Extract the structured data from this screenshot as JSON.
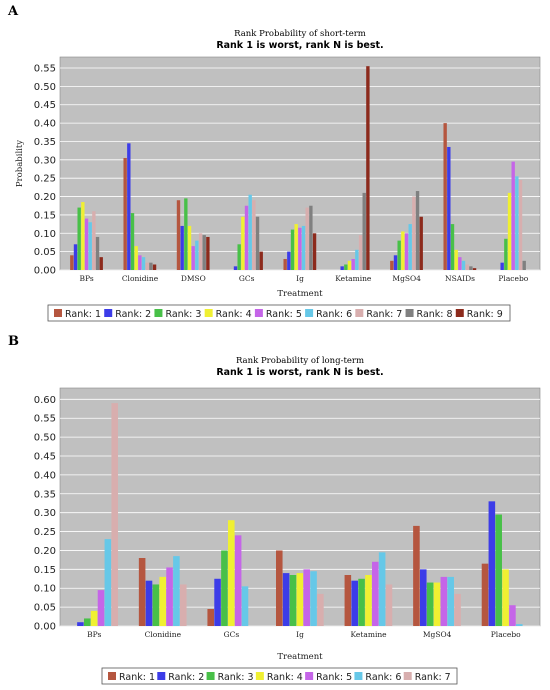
{
  "panels": [
    {
      "letter": "A"
    },
    {
      "letter": "B"
    }
  ],
  "chart_data": [
    {
      "type": "bar",
      "title": "Rank Probability of short-term",
      "subtitle": "Rank 1 is worst, rank N is best.",
      "xlabel": "Treatment",
      "ylabel": "Probability",
      "ylim": [
        0,
        0.58
      ],
      "yticks": [
        "0.00",
        "0.05",
        "0.10",
        "0.15",
        "0.20",
        "0.25",
        "0.30",
        "0.35",
        "0.40",
        "0.45",
        "0.50",
        "0.55"
      ],
      "grid": true,
      "legend_position": "bottom",
      "categories": [
        "BPs",
        "Clonidine",
        "DMSO",
        "GCs",
        "Ig",
        "Ketamine",
        "MgSO4",
        "NSAIDs",
        "Placebo"
      ],
      "series": [
        {
          "name": "Rank: 1",
          "color": "#b5563f",
          "values": [
            0.04,
            0.305,
            0.19,
            0.0,
            0.03,
            0.0,
            0.025,
            0.4,
            0.0
          ]
        },
        {
          "name": "Rank: 2",
          "color": "#3c3ce8",
          "values": [
            0.07,
            0.345,
            0.12,
            0.01,
            0.05,
            0.01,
            0.04,
            0.335,
            0.02
          ]
        },
        {
          "name": "Rank: 3",
          "color": "#48c048",
          "values": [
            0.17,
            0.155,
            0.195,
            0.07,
            0.11,
            0.015,
            0.08,
            0.125,
            0.085
          ]
        },
        {
          "name": "Rank: 4",
          "color": "#f0f032",
          "values": [
            0.185,
            0.065,
            0.12,
            0.145,
            0.125,
            0.025,
            0.105,
            0.055,
            0.21
          ]
        },
        {
          "name": "Rank: 5",
          "color": "#c565e8",
          "values": [
            0.14,
            0.04,
            0.065,
            0.175,
            0.115,
            0.03,
            0.1,
            0.035,
            0.295
          ]
        },
        {
          "name": "Rank: 6",
          "color": "#66c8e8",
          "values": [
            0.13,
            0.035,
            0.08,
            0.205,
            0.12,
            0.055,
            0.125,
            0.025,
            0.255
          ]
        },
        {
          "name": "Rank: 7",
          "color": "#d8aeae",
          "values": [
            0.16,
            0.02,
            0.1,
            0.19,
            0.17,
            0.095,
            0.2,
            0.015,
            0.245
          ]
        },
        {
          "name": "Rank: 8",
          "color": "#808080",
          "values": [
            0.09,
            0.02,
            0.095,
            0.145,
            0.175,
            0.21,
            0.215,
            0.01,
            0.025
          ]
        },
        {
          "name": "Rank: 9",
          "color": "#8c2a1c",
          "values": [
            0.035,
            0.015,
            0.09,
            0.05,
            0.1,
            0.555,
            0.145,
            0.005,
            0.0
          ]
        }
      ]
    },
    {
      "type": "bar",
      "title": "Rank Probability of long-term",
      "subtitle": "Rank 1 is worst, rank N is best.",
      "xlabel": "Treatment",
      "ylabel": "",
      "ylim": [
        0,
        0.63
      ],
      "yticks": [
        "0.00",
        "0.05",
        "0.10",
        "0.15",
        "0.20",
        "0.25",
        "0.30",
        "0.35",
        "0.40",
        "0.45",
        "0.50",
        "0.55",
        "0.60"
      ],
      "grid": true,
      "legend_position": "bottom",
      "categories": [
        "BPs",
        "Clonidine",
        "GCs",
        "Ig",
        "Ketamine",
        "MgSO4",
        "Placebo"
      ],
      "series": [
        {
          "name": "Rank: 1",
          "color": "#b5563f",
          "values": [
            0.0,
            0.18,
            0.045,
            0.2,
            0.135,
            0.265,
            0.165
          ]
        },
        {
          "name": "Rank: 2",
          "color": "#3c3ce8",
          "values": [
            0.01,
            0.12,
            0.125,
            0.14,
            0.12,
            0.15,
            0.33
          ]
        },
        {
          "name": "Rank: 3",
          "color": "#48c048",
          "values": [
            0.02,
            0.11,
            0.2,
            0.135,
            0.125,
            0.115,
            0.295
          ]
        },
        {
          "name": "Rank: 4",
          "color": "#f0f032",
          "values": [
            0.04,
            0.13,
            0.28,
            0.14,
            0.135,
            0.115,
            0.15
          ]
        },
        {
          "name": "Rank: 5",
          "color": "#c565e8",
          "values": [
            0.095,
            0.155,
            0.24,
            0.15,
            0.17,
            0.13,
            0.055
          ]
        },
        {
          "name": "Rank: 6",
          "color": "#66c8e8",
          "values": [
            0.23,
            0.185,
            0.105,
            0.145,
            0.195,
            0.13,
            0.005
          ]
        },
        {
          "name": "Rank: 7",
          "color": "#d8aeae",
          "values": [
            0.59,
            0.11,
            0.0,
            0.085,
            0.11,
            0.085,
            0.0
          ]
        }
      ]
    }
  ]
}
